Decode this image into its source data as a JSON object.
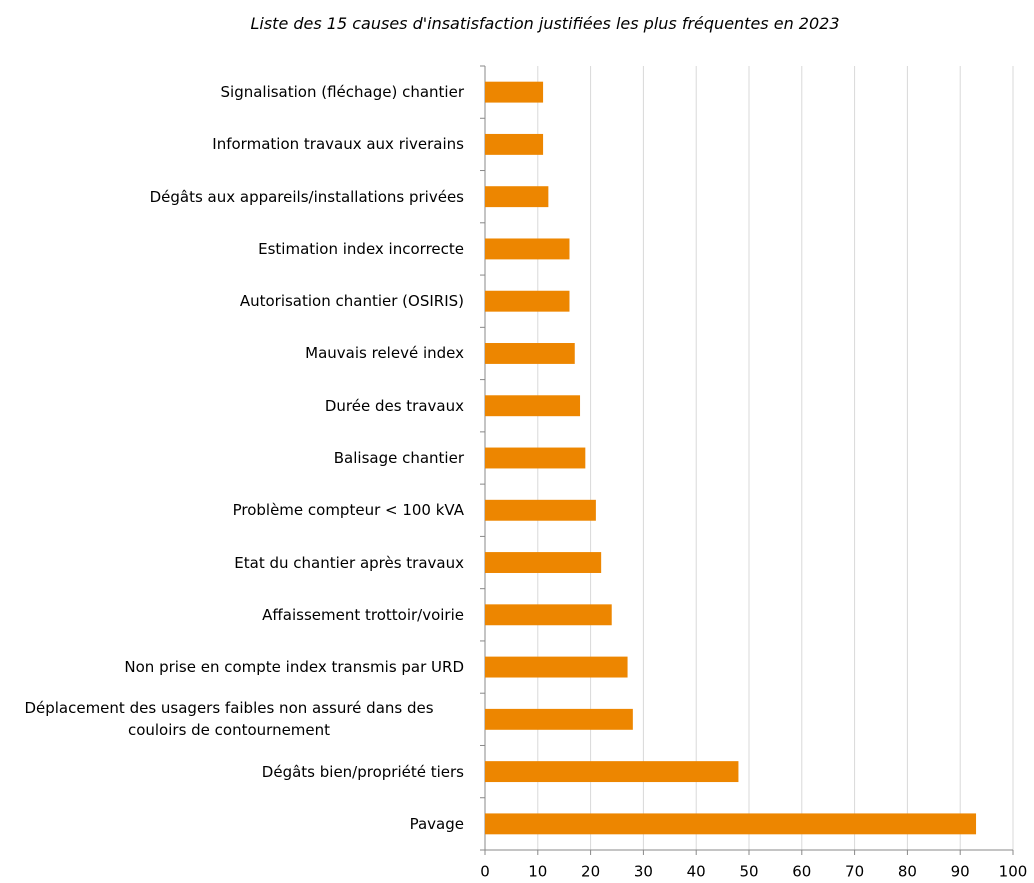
{
  "chart_data": {
    "type": "barh",
    "title": "Liste des 15 causes d'insatisfaction justifiées les plus fréquentes en 2023",
    "categories": [
      "Signalisation (fléchage) chantier",
      "Information travaux aux riverains",
      "Dégâts aux appareils/installations privées",
      "Estimation index incorrecte",
      "Autorisation chantier (OSIRIS)",
      "Mauvais relevé index",
      "Durée des travaux",
      "Balisage chantier",
      "Problème compteur < 100 kVA",
      "Etat du chantier après travaux",
      "Affaissement trottoir/voirie",
      "Non prise en compte index transmis par URD",
      "Déplacement des usagers faibles non assuré dans des couloirs de contournement",
      "Dégâts bien/propriété tiers",
      "Pavage"
    ],
    "values": [
      11,
      11,
      12,
      16,
      16,
      17,
      18,
      19,
      21,
      22,
      24,
      27,
      28,
      48,
      93
    ],
    "color": "#ed8600",
    "xlim": [
      0,
      100
    ],
    "xticks": [
      0,
      10,
      20,
      30,
      40,
      50,
      60,
      70,
      80,
      90,
      100
    ],
    "grid": true
  }
}
